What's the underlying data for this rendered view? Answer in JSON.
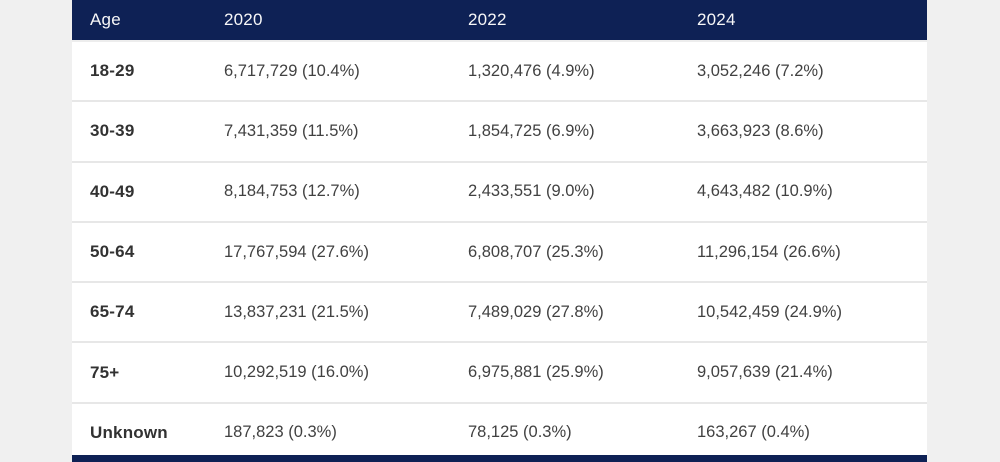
{
  "table": {
    "columns": [
      "Age",
      "2020",
      "2022",
      "2024"
    ],
    "rows": [
      {
        "age": "18-29",
        "cells": [
          "6,717,729 (10.4%)",
          "1,320,476 (4.9%)",
          "3,052,246 (7.2%)"
        ]
      },
      {
        "age": "30-39",
        "cells": [
          "7,431,359 (11.5%)",
          "1,854,725 (6.9%)",
          "3,663,923 (8.6%)"
        ]
      },
      {
        "age": "40-49",
        "cells": [
          "8,184,753 (12.7%)",
          "2,433,551 (9.0%)",
          "4,643,482 (10.9%)"
        ]
      },
      {
        "age": "50-64",
        "cells": [
          "17,767,594 (27.6%)",
          "6,808,707 (25.3%)",
          "11,296,154 (26.6%)"
        ]
      },
      {
        "age": "65-74",
        "cells": [
          "13,837,231 (21.5%)",
          "7,489,029 (27.8%)",
          "10,542,459 (24.9%)"
        ]
      },
      {
        "age": "75+",
        "cells": [
          "10,292,519 (16.0%)",
          "6,975,881 (25.9%)",
          "9,057,639 (21.4%)"
        ]
      },
      {
        "age": "Unknown",
        "cells": [
          "187,823 (0.3%)",
          "78,125 (0.3%)",
          "163,267 (0.4%)"
        ]
      }
    ]
  },
  "chart_data": {
    "type": "table",
    "title": "",
    "columns": [
      "Age",
      "2020",
      "2022",
      "2024"
    ],
    "categories": [
      "18-29",
      "30-39",
      "40-49",
      "50-64",
      "65-74",
      "75+",
      "Unknown"
    ],
    "series": [
      {
        "name": "2020",
        "counts": [
          6717729,
          7431359,
          8184753,
          17767594,
          13837231,
          10292519,
          187823
        ],
        "percents": [
          10.4,
          11.5,
          12.7,
          27.6,
          21.5,
          16.0,
          0.3
        ]
      },
      {
        "name": "2022",
        "counts": [
          1320476,
          1854725,
          2433551,
          6808707,
          7489029,
          6975881,
          78125
        ],
        "percents": [
          4.9,
          6.9,
          9.0,
          25.3,
          27.8,
          25.9,
          0.3
        ]
      },
      {
        "name": "2024",
        "counts": [
          3052246,
          3663923,
          4643482,
          11296154,
          10542459,
          9057639,
          163267
        ],
        "percents": [
          7.2,
          8.6,
          10.9,
          26.6,
          24.9,
          21.4,
          0.4
        ]
      }
    ],
    "rows": [
      [
        "18-29",
        "6,717,729 (10.4%)",
        "1,320,476 (4.9%)",
        "3,052,246 (7.2%)"
      ],
      [
        "30-39",
        "7,431,359 (11.5%)",
        "1,854,725 (6.9%)",
        "3,663,923 (8.6%)"
      ],
      [
        "40-49",
        "8,184,753 (12.7%)",
        "2,433,551 (9.0%)",
        "4,643,482 (10.9%)"
      ],
      [
        "50-64",
        "17,767,594 (27.6%)",
        "6,808,707 (25.3%)",
        "11,296,154 (26.6%)"
      ],
      [
        "65-74",
        "13,837,231 (21.5%)",
        "7,489,029 (27.8%)",
        "10,542,459 (24.9%)"
      ],
      [
        "75+",
        "10,292,519 (16.0%)",
        "6,975,881 (25.9%)",
        "9,057,639 (21.4%)"
      ],
      [
        "Unknown",
        "187,823 (0.3%)",
        "78,125 (0.3%)",
        "163,267 (0.4%)"
      ]
    ]
  },
  "colors": {
    "header_bg": "#0e2155",
    "header_text": "#f7f7f8",
    "page_bg": "#f0f0f0",
    "table_bg": "#ffffff",
    "divider": "#e7e7e7",
    "row_label_text": "#323232",
    "cell_text": "#414141",
    "bottom_border": "#0e2155"
  }
}
